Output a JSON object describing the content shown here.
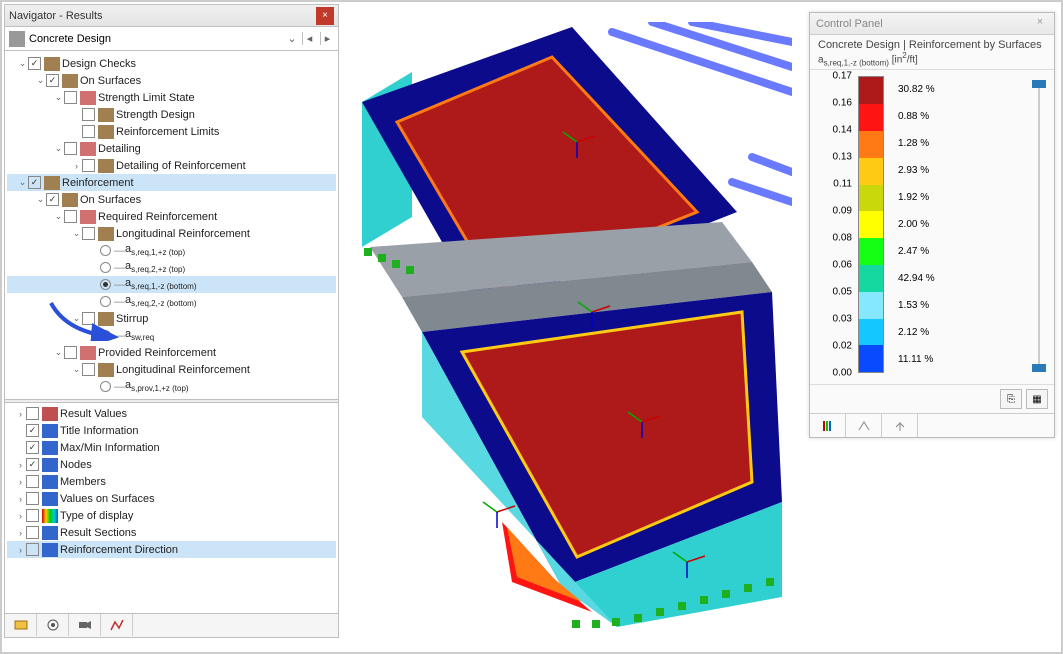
{
  "navigator": {
    "title": "Navigator - Results",
    "combo": "Concrete Design",
    "tree_top": [
      {
        "level": 0,
        "exp": "v",
        "cb": "checked",
        "icon": "#a08050",
        "label": "Design Checks"
      },
      {
        "level": 1,
        "exp": "v",
        "cb": "checked",
        "icon": "#a08050",
        "label": "On Surfaces"
      },
      {
        "level": 2,
        "exp": "v",
        "cb": "",
        "icon": "#d07070",
        "label": "Strength Limit State"
      },
      {
        "level": 3,
        "exp": "",
        "cb": "",
        "icon": "#a08050",
        "label": "Strength Design"
      },
      {
        "level": 3,
        "exp": "",
        "cb": "",
        "icon": "#a08050",
        "label": "Reinforcement Limits"
      },
      {
        "level": 2,
        "exp": "v",
        "cb": "",
        "icon": "#d07070",
        "label": "Detailing"
      },
      {
        "level": 3,
        "exp": ">",
        "cb": "",
        "icon": "#a08050",
        "label": "Detailing of Reinforcement"
      },
      {
        "level": 0,
        "exp": "v",
        "cb": "checked",
        "icon": "#a08050",
        "label": "Reinforcement",
        "sel": true
      },
      {
        "level": 1,
        "exp": "v",
        "cb": "checked",
        "icon": "#a08050",
        "label": "On Surfaces"
      },
      {
        "level": 2,
        "exp": "v",
        "cb": "",
        "icon": "#d07070",
        "label": "Required Reinforcement"
      },
      {
        "level": 3,
        "exp": "v",
        "cb": "",
        "icon": "#a08050",
        "label": "Longitudinal Reinforcement"
      },
      {
        "level": 4,
        "type": "radio",
        "sel": false,
        "html": "a<sub>s,req,1,+z (top)</sub>"
      },
      {
        "level": 4,
        "type": "radio",
        "sel": false,
        "html": "a<sub>s,req,2,+z (top)</sub>"
      },
      {
        "level": 4,
        "type": "radio",
        "sel": true,
        "html": "a<sub>s,req,1,-z (bottom)</sub>"
      },
      {
        "level": 4,
        "type": "radio",
        "sel": false,
        "html": "a<sub>s,req,2,-z (bottom)</sub>"
      },
      {
        "level": 3,
        "exp": "v",
        "cb": "",
        "icon": "#a08050",
        "label": "Stirrup"
      },
      {
        "level": 4,
        "type": "radio",
        "sel": false,
        "html": "a<sub>sw,req</sub>"
      },
      {
        "level": 2,
        "exp": "v",
        "cb": "",
        "icon": "#d07070",
        "label": "Provided Reinforcement"
      },
      {
        "level": 3,
        "exp": "v",
        "cb": "",
        "icon": "#a08050",
        "label": "Longitudinal Reinforcement"
      },
      {
        "level": 4,
        "type": "radio",
        "sel": false,
        "html": "a<sub>s,prov,1,+z (top)</sub>"
      }
    ],
    "tree_bottom": [
      {
        "exp": ">",
        "cb": "",
        "icon": "#c05050",
        "label": "Result Values"
      },
      {
        "exp": "",
        "cb": "checked",
        "icon": "#3366cc",
        "label": "Title Information"
      },
      {
        "exp": "",
        "cb": "checked",
        "icon": "#3366cc",
        "label": "Max/Min Information"
      },
      {
        "exp": ">",
        "cb": "checked",
        "icon": "#3366cc",
        "label": "Nodes"
      },
      {
        "exp": ">",
        "cb": "",
        "icon": "#3366cc",
        "label": "Members"
      },
      {
        "exp": ">",
        "cb": "",
        "icon": "#3366cc",
        "label": "Values on Surfaces"
      },
      {
        "exp": ">",
        "cb": "",
        "icon": "rainbow",
        "label": "Type of display"
      },
      {
        "exp": ">",
        "cb": "",
        "icon": "#3366cc",
        "label": "Result Sections"
      },
      {
        "exp": ">",
        "cb": "",
        "icon": "#3366cc",
        "label": "Reinforcement Direction",
        "sel": true
      }
    ]
  },
  "control_panel": {
    "title": "Control Panel",
    "sub1": "Concrete Design | Reinforcement by Surfaces",
    "sub2_html": "a<sub>s,req,1,-z (bottom)</sub> [in<sup>2</sup>/ft]",
    "values": [
      "0.17",
      "0.16",
      "0.14",
      "0.13",
      "0.11",
      "0.09",
      "0.08",
      "0.06",
      "0.05",
      "0.03",
      "0.02",
      "0.00"
    ],
    "colors": [
      "#ae1a1a",
      "#ff1414",
      "#ff7a14",
      "#ffca14",
      "#c8d80b",
      "#ffff00",
      "#14ff14",
      "#14d8a0",
      "#85e8ff",
      "#14c8ff",
      "#0a4aff",
      "#0b0b8c"
    ],
    "percents": [
      "30.82 %",
      "0.88 %",
      "1.28 %",
      "2.93 %",
      "1.92 %",
      "2.00 %",
      "2.47 %",
      "42.94 %",
      "1.53 %",
      "2.12 %",
      "11.11 %"
    ]
  }
}
